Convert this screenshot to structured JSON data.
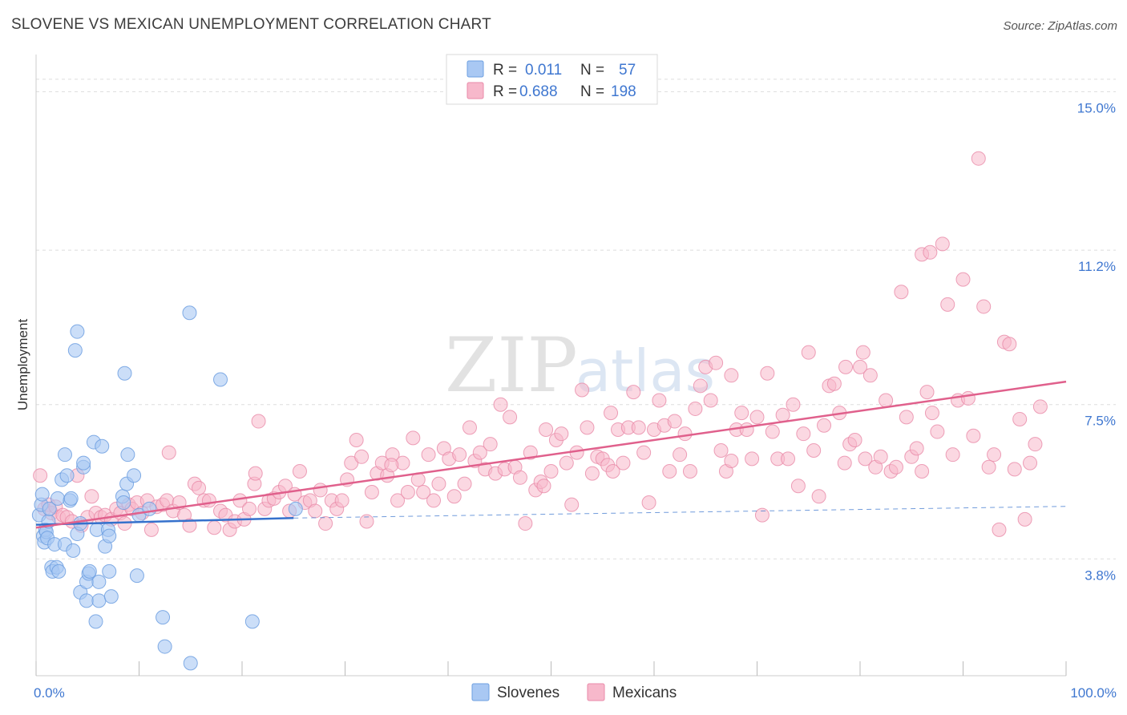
{
  "header": {
    "title": "SLOVENE VS MEXICAN UNEMPLOYMENT CORRELATION CHART",
    "source": "Source: ZipAtlas.com"
  },
  "watermark": {
    "zip": "ZIP",
    "atlas": "atlas"
  },
  "legend": {
    "rows": [
      {
        "r_label": "R =",
        "r_value": "0.011",
        "n_label": "N =",
        "n_value": "57",
        "color": "#a9c8f3"
      },
      {
        "r_label": "R =",
        "r_value": "0.688",
        "n_label": "N =",
        "n_value": "198",
        "color": "#f7b8cb"
      }
    ]
  },
  "bottom_legend": [
    {
      "label": "Slovenes",
      "color": "#a9c8f3"
    },
    {
      "label": "Mexicans",
      "color": "#f7b8cb"
    }
  ],
  "chart_data": {
    "type": "scatter",
    "title": "SLOVENE VS MEXICAN UNEMPLOYMENT CORRELATION CHART",
    "xlabel": "",
    "ylabel": "Unemployment",
    "xlim": [
      0,
      100
    ],
    "ylim": [
      1.0,
      15.7
    ],
    "x_tick_labels": [
      "0.0%",
      "100.0%"
    ],
    "y_ticks": [
      {
        "value": 3.8,
        "label": "3.8%"
      },
      {
        "value": 7.5,
        "label": "7.5%"
      },
      {
        "value": 11.2,
        "label": "11.2%"
      },
      {
        "value": 15.0,
        "label": "15.0%"
      }
    ],
    "x_minor_ticks": [
      0,
      10,
      20,
      30,
      40,
      50,
      60,
      70,
      80,
      90,
      100
    ],
    "colors": {
      "slovenes_fill": "#a9c8f3",
      "slovenes_stroke": "#6d9fe0",
      "slovenes_line": "#3571cc",
      "mexicans_fill": "#f7b8cb",
      "mexicans_stroke": "#e88aa8",
      "mexicans_line": "#e0608c",
      "grid": "#dddddd",
      "axis_label": "#3f77d0"
    },
    "series": [
      {
        "name": "Slovenes",
        "trend": {
          "x0": 0,
          "y0": 4.62,
          "x1": 25,
          "y1": 4.78,
          "dashed_to_x": 100,
          "dashed_to_y": 5.06
        },
        "points": [
          [
            0.3,
            4.85
          ],
          [
            0.5,
            5.1
          ],
          [
            0.6,
            5.35
          ],
          [
            0.7,
            4.35
          ],
          [
            0.8,
            4.2
          ],
          [
            0.9,
            4.5
          ],
          [
            1.0,
            4.45
          ],
          [
            1.1,
            4.3
          ],
          [
            1.2,
            4.7
          ],
          [
            1.3,
            5.0
          ],
          [
            1.5,
            3.6
          ],
          [
            1.6,
            3.5
          ],
          [
            1.8,
            4.15
          ],
          [
            2.0,
            3.6
          ],
          [
            2.1,
            5.25
          ],
          [
            2.2,
            3.5
          ],
          [
            2.5,
            5.7
          ],
          [
            2.8,
            4.15
          ],
          [
            2.8,
            6.3
          ],
          [
            3.0,
            5.8
          ],
          [
            3.3,
            5.2
          ],
          [
            3.4,
            5.25
          ],
          [
            3.6,
            4.0
          ],
          [
            3.8,
            8.8
          ],
          [
            4.0,
            4.4
          ],
          [
            4.0,
            9.25
          ],
          [
            4.3,
            4.65
          ],
          [
            4.3,
            3.0
          ],
          [
            4.6,
            6.0
          ],
          [
            4.6,
            6.1
          ],
          [
            4.9,
            3.25
          ],
          [
            4.9,
            2.8
          ],
          [
            5.1,
            3.45
          ],
          [
            5.2,
            3.5
          ],
          [
            5.6,
            6.6
          ],
          [
            5.8,
            2.3
          ],
          [
            5.9,
            4.5
          ],
          [
            6.1,
            3.25
          ],
          [
            6.1,
            2.8
          ],
          [
            6.4,
            6.5
          ],
          [
            6.7,
            4.1
          ],
          [
            7.0,
            4.5
          ],
          [
            7.1,
            4.35
          ],
          [
            7.1,
            3.5
          ],
          [
            7.3,
            2.9
          ],
          [
            8.4,
            5.3
          ],
          [
            8.5,
            5.15
          ],
          [
            8.6,
            8.25
          ],
          [
            8.8,
            5.6
          ],
          [
            8.9,
            6.3
          ],
          [
            9.5,
            5.8
          ],
          [
            9.8,
            3.4
          ],
          [
            10.0,
            4.85
          ],
          [
            11.0,
            5.0
          ],
          [
            12.3,
            2.4
          ],
          [
            12.5,
            1.7
          ],
          [
            14.9,
            9.7
          ],
          [
            15.0,
            1.3
          ],
          [
            17.9,
            8.1
          ],
          [
            21.0,
            2.3
          ],
          [
            25.2,
            5.0
          ]
        ]
      },
      {
        "name": "Mexicans",
        "trend": {
          "x0": 0,
          "y0": 4.55,
          "x1": 100,
          "y1": 8.05
        },
        "points": [
          [
            0.4,
            5.8
          ],
          [
            0.8,
            5.0
          ],
          [
            1.2,
            5.1
          ],
          [
            1.5,
            4.9
          ],
          [
            1.9,
            5.05
          ],
          [
            2.2,
            4.8
          ],
          [
            2.6,
            4.85
          ],
          [
            3.0,
            4.8
          ],
          [
            3.5,
            4.7
          ],
          [
            4.0,
            5.8
          ],
          [
            4.4,
            4.6
          ],
          [
            5.0,
            4.8
          ],
          [
            5.4,
            5.3
          ],
          [
            5.8,
            4.9
          ],
          [
            6.3,
            4.8
          ],
          [
            6.7,
            4.85
          ],
          [
            7.3,
            4.75
          ],
          [
            7.8,
            5.0
          ],
          [
            8.2,
            4.9
          ],
          [
            8.6,
            4.65
          ],
          [
            9.0,
            5.1
          ],
          [
            9.3,
            5.0
          ],
          [
            9.8,
            5.15
          ],
          [
            10.3,
            4.9
          ],
          [
            10.8,
            5.2
          ],
          [
            11.2,
            4.5
          ],
          [
            11.7,
            5.05
          ],
          [
            12.3,
            5.1
          ],
          [
            12.7,
            5.2
          ],
          [
            13.3,
            4.95
          ],
          [
            13.9,
            5.15
          ],
          [
            14.4,
            4.85
          ],
          [
            14.9,
            4.6
          ],
          [
            15.4,
            5.6
          ],
          [
            15.8,
            5.5
          ],
          [
            16.3,
            5.2
          ],
          [
            16.8,
            5.2
          ],
          [
            17.3,
            4.55
          ],
          [
            17.9,
            4.95
          ],
          [
            18.4,
            4.85
          ],
          [
            18.8,
            4.5
          ],
          [
            19.3,
            4.7
          ],
          [
            19.8,
            5.2
          ],
          [
            20.2,
            4.75
          ],
          [
            20.7,
            5.0
          ],
          [
            21.2,
            5.6
          ],
          [
            21.6,
            7.1
          ],
          [
            22.2,
            5.0
          ],
          [
            22.6,
            5.2
          ],
          [
            23.1,
            5.25
          ],
          [
            23.6,
            5.4
          ],
          [
            24.2,
            5.55
          ],
          [
            24.6,
            4.95
          ],
          [
            25.1,
            5.35
          ],
          [
            25.6,
            5.9
          ],
          [
            26.1,
            5.15
          ],
          [
            26.6,
            5.2
          ],
          [
            27.1,
            4.95
          ],
          [
            27.6,
            5.45
          ],
          [
            28.1,
            4.65
          ],
          [
            28.7,
            5.2
          ],
          [
            29.2,
            5.0
          ],
          [
            29.7,
            5.2
          ],
          [
            30.2,
            5.7
          ],
          [
            30.6,
            6.1
          ],
          [
            31.1,
            6.65
          ],
          [
            31.6,
            6.25
          ],
          [
            32.1,
            4.7
          ],
          [
            32.6,
            5.4
          ],
          [
            33.1,
            5.85
          ],
          [
            33.6,
            6.1
          ],
          [
            34.1,
            5.8
          ],
          [
            34.6,
            6.3
          ],
          [
            35.1,
            5.2
          ],
          [
            35.6,
            6.1
          ],
          [
            36.1,
            5.4
          ],
          [
            36.6,
            6.7
          ],
          [
            37.1,
            5.7
          ],
          [
            37.6,
            5.4
          ],
          [
            38.1,
            6.3
          ],
          [
            38.6,
            5.2
          ],
          [
            39.1,
            5.6
          ],
          [
            39.6,
            6.45
          ],
          [
            40.1,
            6.2
          ],
          [
            40.6,
            5.3
          ],
          [
            41.1,
            6.3
          ],
          [
            41.6,
            5.6
          ],
          [
            42.1,
            6.95
          ],
          [
            42.6,
            6.15
          ],
          [
            43.1,
            6.35
          ],
          [
            43.6,
            5.95
          ],
          [
            44.1,
            6.55
          ],
          [
            44.6,
            5.85
          ],
          [
            45.1,
            7.5
          ],
          [
            45.5,
            5.95
          ],
          [
            46.0,
            7.2
          ],
          [
            46.5,
            6.0
          ],
          [
            47.0,
            5.75
          ],
          [
            47.5,
            4.65
          ],
          [
            48.0,
            6.35
          ],
          [
            48.5,
            5.45
          ],
          [
            49.0,
            5.65
          ],
          [
            49.5,
            6.9
          ],
          [
            50.0,
            5.9
          ],
          [
            50.5,
            6.65
          ],
          [
            51.0,
            6.8
          ],
          [
            51.5,
            6.1
          ],
          [
            52.0,
            5.1
          ],
          [
            52.5,
            6.35
          ],
          [
            53.0,
            7.85
          ],
          [
            53.5,
            6.95
          ],
          [
            54.0,
            5.85
          ],
          [
            54.5,
            6.25
          ],
          [
            55.0,
            6.2
          ],
          [
            55.5,
            6.05
          ],
          [
            56.0,
            5.9
          ],
          [
            56.5,
            6.9
          ],
          [
            57.0,
            6.1
          ],
          [
            57.5,
            6.95
          ],
          [
            58.0,
            7.8
          ],
          [
            58.5,
            6.95
          ],
          [
            59.0,
            6.35
          ],
          [
            59.5,
            5.15
          ],
          [
            60.0,
            6.9
          ],
          [
            60.5,
            7.6
          ],
          [
            61.0,
            7.0
          ],
          [
            61.5,
            5.9
          ],
          [
            62.0,
            7.1
          ],
          [
            62.5,
            6.3
          ],
          [
            63.0,
            6.8
          ],
          [
            63.5,
            5.9
          ],
          [
            64.0,
            7.4
          ],
          [
            64.5,
            7.95
          ],
          [
            65.0,
            8.4
          ],
          [
            65.5,
            7.6
          ],
          [
            66.0,
            8.5
          ],
          [
            66.5,
            6.4
          ],
          [
            67.0,
            5.9
          ],
          [
            67.5,
            6.15
          ],
          [
            68.0,
            6.9
          ],
          [
            68.5,
            7.3
          ],
          [
            69.0,
            6.9
          ],
          [
            69.5,
            6.2
          ],
          [
            70.0,
            7.2
          ],
          [
            70.5,
            4.85
          ],
          [
            71.0,
            8.25
          ],
          [
            71.5,
            6.85
          ],
          [
            72.0,
            6.2
          ],
          [
            72.5,
            7.25
          ],
          [
            73.0,
            6.2
          ],
          [
            73.5,
            7.5
          ],
          [
            74.0,
            5.55
          ],
          [
            74.5,
            6.8
          ],
          [
            75.0,
            8.75
          ],
          [
            75.5,
            6.4
          ],
          [
            76.0,
            5.3
          ],
          [
            76.5,
            7.0
          ],
          [
            77.0,
            7.95
          ],
          [
            77.5,
            8.0
          ],
          [
            78.0,
            7.3
          ],
          [
            78.5,
            6.1
          ],
          [
            79.0,
            6.55
          ],
          [
            79.5,
            6.65
          ],
          [
            80.0,
            8.4
          ],
          [
            80.5,
            6.2
          ],
          [
            81.0,
            8.2
          ],
          [
            81.5,
            6.0
          ],
          [
            82.0,
            6.25
          ],
          [
            82.5,
            7.6
          ],
          [
            83.0,
            5.9
          ],
          [
            83.5,
            6.0
          ],
          [
            84.0,
            10.2
          ],
          [
            84.5,
            7.2
          ],
          [
            85.0,
            6.25
          ],
          [
            85.5,
            6.45
          ],
          [
            86.0,
            5.9
          ],
          [
            86.5,
            7.8
          ],
          [
            87.0,
            7.3
          ],
          [
            87.5,
            6.85
          ],
          [
            88.0,
            11.35
          ],
          [
            88.5,
            9.9
          ],
          [
            89.0,
            6.3
          ],
          [
            89.5,
            7.6
          ],
          [
            90.0,
            10.5
          ],
          [
            90.5,
            7.65
          ],
          [
            91.0,
            6.75
          ],
          [
            91.5,
            13.4
          ],
          [
            92.0,
            9.85
          ],
          [
            92.5,
            6.0
          ],
          [
            93.0,
            6.3
          ],
          [
            93.5,
            4.5
          ],
          [
            94.0,
            9.0
          ],
          [
            94.5,
            8.95
          ],
          [
            95.0,
            5.95
          ],
          [
            95.5,
            7.15
          ],
          [
            96.0,
            4.75
          ],
          [
            96.5,
            6.1
          ],
          [
            97.0,
            6.55
          ],
          [
            97.5,
            7.45
          ],
          [
            86.0,
            11.1
          ],
          [
            86.8,
            11.15
          ],
          [
            80.3,
            8.75
          ],
          [
            78.6,
            8.4
          ],
          [
            67.5,
            8.2
          ],
          [
            55.8,
            7.3
          ],
          [
            49.3,
            5.55
          ],
          [
            34.5,
            6.05
          ],
          [
            21.3,
            5.85
          ],
          [
            12.9,
            6.35
          ]
        ]
      }
    ]
  }
}
